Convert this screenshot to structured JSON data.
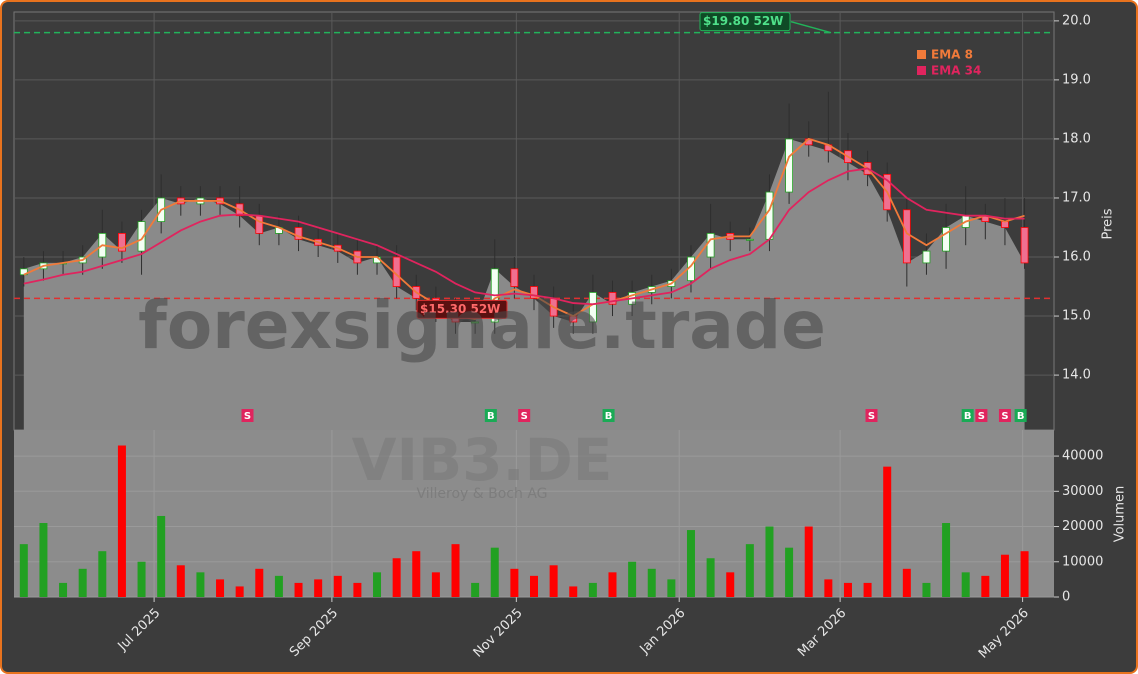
{
  "chart_data": {
    "type": "candlestick",
    "watermark": "forexsignale.trade",
    "ticker": "VIB3.DE",
    "company": "Villeroy & Boch AG",
    "ylabel": "Preis",
    "y2label": "Volumen",
    "xlim": [
      0,
      53
    ],
    "xticks": [
      {
        "value": 7.14,
        "label": "Jul 2025"
      },
      {
        "value": 16.2,
        "label": "Sep 2025"
      },
      {
        "value": 25.6,
        "label": "Nov 2025"
      },
      {
        "value": 33.9,
        "label": "Jan 2026"
      },
      {
        "value": 42.1,
        "label": "Mar 2026"
      },
      {
        "value": 51.4,
        "label": "May 2026"
      }
    ],
    "ylim": [
      13.07,
      20.15
    ],
    "yticks": [
      {
        "value": 14,
        "label": "14.0"
      },
      {
        "value": 15,
        "label": "15.0"
      },
      {
        "value": 16,
        "label": "16.0"
      },
      {
        "value": 17,
        "label": "17.0"
      },
      {
        "value": 18,
        "label": "18.0"
      },
      {
        "value": 19,
        "label": "19.0"
      },
      {
        "value": 20,
        "label": "20.0"
      }
    ],
    "y2lim": [
      0,
      47400
    ],
    "y2ticks": [
      0,
      10000,
      20000,
      30000,
      40000
    ],
    "grid": true,
    "up_color": "#22a022",
    "down_color": "#ff0000",
    "area_color": "#8a8a8a",
    "open": [
      15.7,
      15.8,
      15.9,
      15.9,
      16.0,
      16.4,
      16.1,
      16.6,
      17.0,
      16.9,
      17.0,
      16.9,
      16.7,
      16.4,
      16.5,
      16.3,
      16.2,
      16.1,
      15.9,
      16.0,
      15.5,
      15.3,
      15.1,
      14.9,
      14.9,
      15.8,
      15.5,
      15.3,
      15.0,
      14.9,
      15.4,
      15.2,
      15.4,
      15.5,
      15.6,
      16.0,
      16.4,
      16.3,
      16.3,
      17.1,
      18.0,
      17.9,
      17.8,
      17.6,
      17.4,
      16.8,
      15.9,
      16.1,
      16.5,
      16.7,
      16.6,
      16.5
    ],
    "high": [
      16.0,
      16.1,
      16.1,
      16.2,
      16.8,
      16.6,
      16.8,
      17.4,
      17.2,
      17.2,
      17.2,
      17.2,
      16.9,
      16.7,
      16.7,
      16.5,
      16.4,
      16.3,
      16.2,
      16.2,
      15.7,
      15.5,
      15.3,
      15.1,
      16.3,
      16.0,
      15.7,
      15.5,
      15.2,
      15.7,
      15.6,
      15.6,
      15.7,
      15.8,
      16.2,
      16.9,
      16.6,
      16.5,
      17.4,
      18.6,
      18.3,
      18.8,
      18.1,
      17.8,
      17.6,
      17.0,
      16.4,
      16.9,
      17.2,
      16.9,
      17.0,
      17.0
    ],
    "low": [
      15.5,
      15.6,
      15.7,
      15.7,
      15.8,
      15.9,
      15.7,
      16.4,
      16.7,
      16.7,
      16.7,
      16.5,
      16.2,
      16.2,
      16.1,
      16.0,
      15.9,
      15.7,
      15.7,
      15.3,
      15.1,
      14.9,
      14.7,
      14.7,
      14.7,
      15.3,
      15.1,
      14.8,
      14.7,
      14.7,
      15.0,
      15.0,
      15.2,
      15.3,
      15.4,
      15.8,
      16.1,
      16.1,
      16.1,
      16.9,
      17.7,
      17.6,
      17.3,
      17.2,
      16.6,
      15.5,
      15.7,
      15.8,
      16.2,
      16.3,
      16.2,
      15.8
    ],
    "close": [
      15.8,
      15.9,
      15.9,
      16.0,
      16.4,
      16.1,
      16.6,
      17.0,
      16.9,
      17.0,
      16.9,
      16.7,
      16.4,
      16.5,
      16.3,
      16.2,
      16.1,
      15.9,
      16.0,
      15.5,
      15.3,
      15.1,
      14.9,
      14.9,
      15.8,
      15.5,
      15.3,
      15.0,
      14.9,
      15.4,
      15.2,
      15.4,
      15.5,
      15.6,
      16.0,
      16.4,
      16.3,
      16.3,
      17.1,
      18.0,
      17.9,
      17.8,
      17.6,
      17.4,
      16.8,
      15.9,
      16.1,
      16.5,
      16.7,
      16.6,
      16.5,
      15.9
    ],
    "volume": [
      15000,
      21000,
      4000,
      8000,
      13000,
      43000,
      10000,
      23000,
      9000,
      7000,
      5000,
      3000,
      8000,
      6000,
      4000,
      5000,
      6000,
      4000,
      7000,
      11000,
      13000,
      7000,
      15000,
      4000,
      14000,
      8000,
      6000,
      9000,
      3000,
      4000,
      7000,
      10000,
      8000,
      5000,
      19000,
      11000,
      7000,
      15000,
      20000,
      14000,
      20000,
      5000,
      4000,
      4000,
      37000,
      8000,
      4000,
      21000,
      7000,
      6000,
      12000,
      13000
    ],
    "series": [
      {
        "name": "EMA 8",
        "color": "#f07a3a",
        "values": [
          15.7,
          15.85,
          15.9,
          15.95,
          16.2,
          16.15,
          16.3,
          16.8,
          16.95,
          16.95,
          16.95,
          16.8,
          16.6,
          16.5,
          16.35,
          16.25,
          16.15,
          16.0,
          16.0,
          15.7,
          15.4,
          15.2,
          15.0,
          14.95,
          15.3,
          15.45,
          15.35,
          15.15,
          15.0,
          15.2,
          15.25,
          15.35,
          15.45,
          15.55,
          15.85,
          16.3,
          16.35,
          16.35,
          16.8,
          17.7,
          18.0,
          17.9,
          17.7,
          17.5,
          17.1,
          16.4,
          16.2,
          16.4,
          16.6,
          16.7,
          16.6,
          16.7
        ]
      },
      {
        "name": "EMA 34",
        "color": "#e0245e",
        "values": [
          15.55,
          15.62,
          15.7,
          15.75,
          15.85,
          15.95,
          16.05,
          16.25,
          16.45,
          16.6,
          16.7,
          16.72,
          16.7,
          16.65,
          16.6,
          16.5,
          16.4,
          16.3,
          16.2,
          16.05,
          15.9,
          15.75,
          15.55,
          15.4,
          15.35,
          15.38,
          15.35,
          15.3,
          15.22,
          15.2,
          15.25,
          15.3,
          15.35,
          15.4,
          15.55,
          15.8,
          15.95,
          16.05,
          16.3,
          16.8,
          17.1,
          17.3,
          17.45,
          17.5,
          17.3,
          17.0,
          16.8,
          16.75,
          16.7,
          16.7,
          16.65,
          16.65
        ]
      }
    ],
    "reference_lines": [
      {
        "value": 19.8,
        "value_label": "$19.80 52W",
        "color": "#22b35a"
      },
      {
        "value": 15.3,
        "value_label": "$15.30 52W",
        "color": "#e03030"
      }
    ],
    "signals": [
      {
        "x": 11.9,
        "label": "S",
        "color": "#e0245e"
      },
      {
        "x": 24.3,
        "label": "B",
        "color": "#1aaa55"
      },
      {
        "x": 26.0,
        "label": "S",
        "color": "#e0245e"
      },
      {
        "x": 30.3,
        "label": "B",
        "color": "#1aaa55"
      },
      {
        "x": 43.7,
        "label": "S",
        "color": "#e0245e"
      },
      {
        "x": 48.6,
        "label": "B",
        "color": "#1aaa55"
      },
      {
        "x": 49.3,
        "label": "S",
        "color": "#e0245e"
      },
      {
        "x": 50.5,
        "label": "S",
        "color": "#e0245e"
      },
      {
        "x": 51.3,
        "label": "B",
        "color": "#1aaa55"
      }
    ]
  }
}
